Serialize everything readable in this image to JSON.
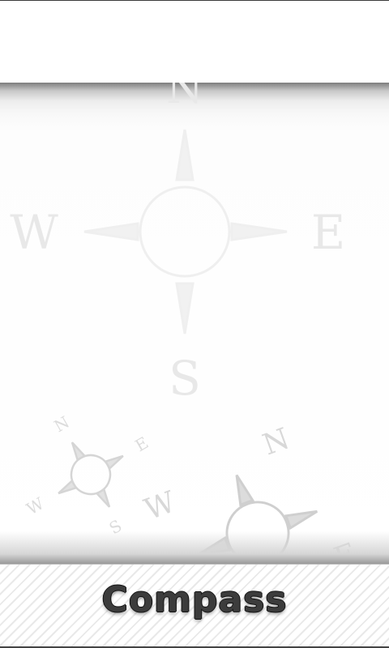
{
  "app": {
    "title": "Compass"
  },
  "watermark": {
    "large": {
      "n": "N",
      "e": "E",
      "s": "S",
      "w": "W"
    },
    "small_left": {
      "n": "N",
      "e": "E",
      "s": "S",
      "w": "W"
    },
    "small_right": {
      "n": "N",
      "e": "E",
      "w": "W"
    }
  },
  "colors": {
    "watermark": "#e6e6e6",
    "title": "#3c3c3c",
    "outline": "#111111"
  }
}
